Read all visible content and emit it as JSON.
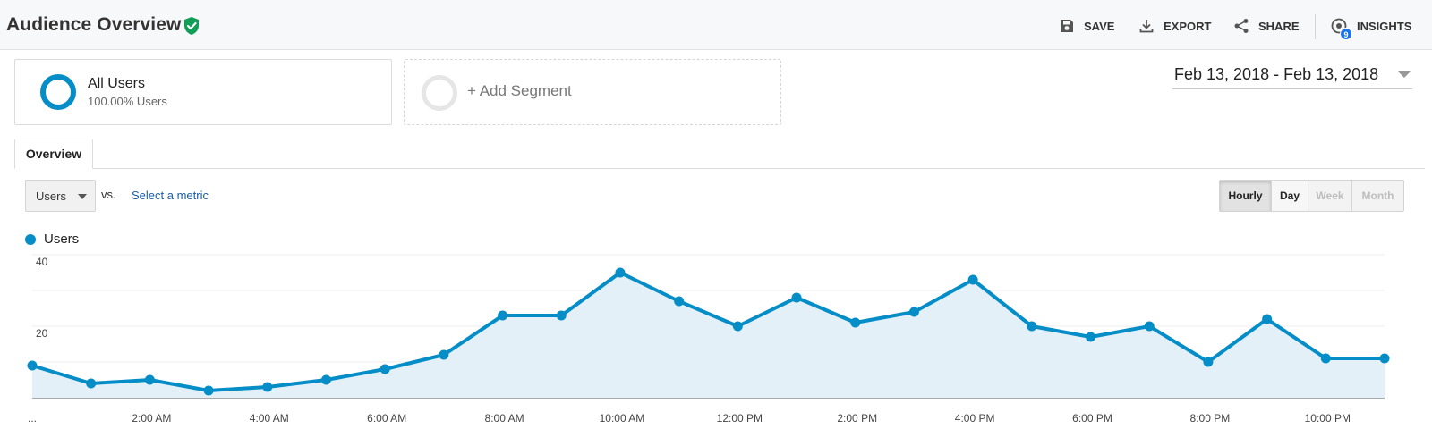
{
  "header": {
    "title": "Audience Overview",
    "actions": {
      "save": "SAVE",
      "export": "EXPORT",
      "share": "SHARE",
      "insights": "INSIGHTS"
    },
    "insights_badge": "9"
  },
  "segments": {
    "all_users": {
      "title": "All Users",
      "subtitle": "100.00% Users"
    },
    "add_segment": "+ Add Segment"
  },
  "date_range": "Feb 13, 2018 - Feb 13, 2018",
  "tabs": {
    "overview": "Overview"
  },
  "metric": {
    "selected": "Users",
    "vs": "vs.",
    "select_metric": "Select a metric"
  },
  "granularity": {
    "hourly": "Hourly",
    "day": "Day",
    "week": "Week",
    "month": "Month",
    "active": "Hourly"
  },
  "colors": {
    "series": "#058dc7",
    "area": "#e3f0f8",
    "verified": "#0f9d58"
  },
  "chart_data": {
    "type": "area",
    "series": [
      {
        "name": "Users",
        "x": [
          "12:00 AM",
          "1:00 AM",
          "2:00 AM",
          "3:00 AM",
          "4:00 AM",
          "5:00 AM",
          "6:00 AM",
          "7:00 AM",
          "8:00 AM",
          "9:00 AM",
          "10:00 AM",
          "11:00 AM",
          "12:00 PM",
          "1:00 PM",
          "2:00 PM",
          "3:00 PM",
          "4:00 PM",
          "5:00 PM",
          "6:00 PM",
          "7:00 PM",
          "8:00 PM",
          "9:00 PM",
          "10:00 PM",
          "11:00 PM"
        ],
        "values": [
          9,
          4,
          5,
          2,
          3,
          5,
          8,
          12,
          23,
          23,
          35,
          27,
          20,
          28,
          21,
          24,
          33,
          20,
          17,
          20,
          10,
          22,
          11,
          11
        ]
      }
    ],
    "y_ticks": [
      "20",
      "40"
    ],
    "ylim": [
      0,
      40
    ],
    "x_tick_labels": [
      "...",
      "2:00 AM",
      "4:00 AM",
      "6:00 AM",
      "8:00 AM",
      "10:00 AM",
      "12:00 PM",
      "2:00 PM",
      "4:00 PM",
      "6:00 PM",
      "8:00 PM",
      "10:00 PM"
    ],
    "grid": true,
    "legend": "top-left"
  }
}
